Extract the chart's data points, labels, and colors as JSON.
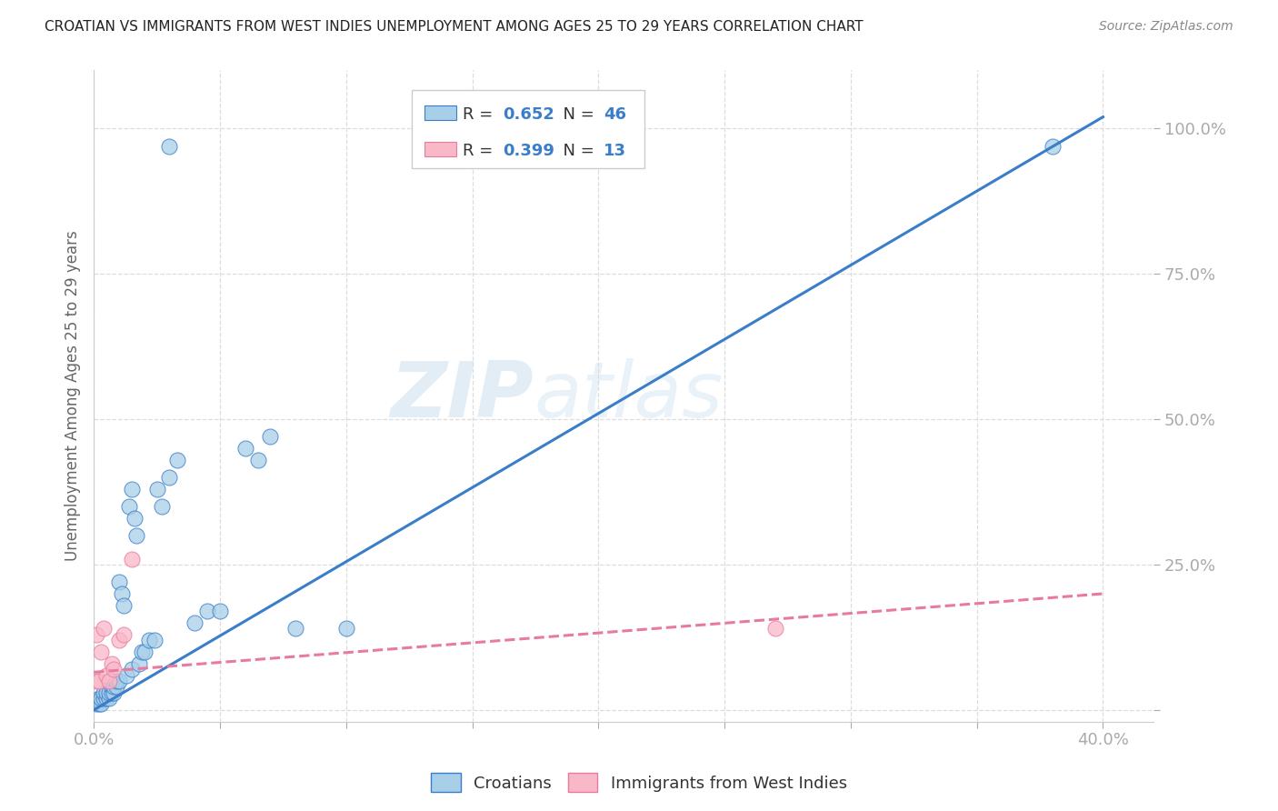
{
  "title": "CROATIAN VS IMMIGRANTS FROM WEST INDIES UNEMPLOYMENT AMONG AGES 25 TO 29 YEARS CORRELATION CHART",
  "source": "Source: ZipAtlas.com",
  "ylabel": "Unemployment Among Ages 25 to 29 years",
  "xlim": [
    0.0,
    0.42
  ],
  "ylim": [
    -0.02,
    1.1
  ],
  "xticks": [
    0.0,
    0.05,
    0.1,
    0.15,
    0.2,
    0.25,
    0.3,
    0.35,
    0.4
  ],
  "yticks": [
    0.0,
    0.25,
    0.5,
    0.75,
    1.0
  ],
  "blue_R": 0.652,
  "blue_N": 46,
  "pink_R": 0.399,
  "pink_N": 13,
  "blue_color": "#a8cfe8",
  "pink_color": "#f9b8c8",
  "blue_line_color": "#3a7dc9",
  "pink_line_color": "#e87aa0",
  "watermark_zip": "ZIP",
  "watermark_atlas": "atlas",
  "legend_label_blue": "Croatians",
  "legend_label_pink": "Immigrants from West Indies",
  "background_color": "#ffffff",
  "grid_color": "#dddddd",
  "title_color": "#222222",
  "value_color": "#3a7dc9",
  "label_color": "#555555",
  "tick_label_color": "#3a7dc9",
  "blue_scatter_x": [
    0.001,
    0.002,
    0.002,
    0.003,
    0.003,
    0.004,
    0.004,
    0.005,
    0.005,
    0.006,
    0.006,
    0.007,
    0.007,
    0.008,
    0.008,
    0.009,
    0.009,
    0.01,
    0.01,
    0.011,
    0.012,
    0.013,
    0.014,
    0.015,
    0.015,
    0.016,
    0.017,
    0.018,
    0.019,
    0.02,
    0.022,
    0.024,
    0.025,
    0.027,
    0.03,
    0.033,
    0.04,
    0.045,
    0.05,
    0.06,
    0.065,
    0.07,
    0.08,
    0.1,
    0.03,
    0.38
  ],
  "blue_scatter_y": [
    0.01,
    0.01,
    0.02,
    0.01,
    0.02,
    0.02,
    0.03,
    0.02,
    0.03,
    0.02,
    0.03,
    0.03,
    0.04,
    0.03,
    0.04,
    0.04,
    0.05,
    0.05,
    0.22,
    0.2,
    0.18,
    0.06,
    0.35,
    0.38,
    0.07,
    0.33,
    0.3,
    0.08,
    0.1,
    0.1,
    0.12,
    0.12,
    0.38,
    0.35,
    0.4,
    0.43,
    0.15,
    0.17,
    0.17,
    0.45,
    0.43,
    0.47,
    0.14,
    0.14,
    0.97,
    0.97
  ],
  "pink_scatter_x": [
    0.001,
    0.001,
    0.002,
    0.003,
    0.004,
    0.005,
    0.006,
    0.007,
    0.008,
    0.01,
    0.012,
    0.015,
    0.27
  ],
  "pink_scatter_y": [
    0.13,
    0.05,
    0.05,
    0.1,
    0.14,
    0.06,
    0.05,
    0.08,
    0.07,
    0.12,
    0.13,
    0.26,
    0.14
  ],
  "blue_trendline_x": [
    0.0,
    0.4
  ],
  "blue_trendline_y": [
    0.0,
    1.02
  ],
  "pink_trendline_x": [
    0.0,
    0.4
  ],
  "pink_trendline_y": [
    0.065,
    0.2
  ]
}
